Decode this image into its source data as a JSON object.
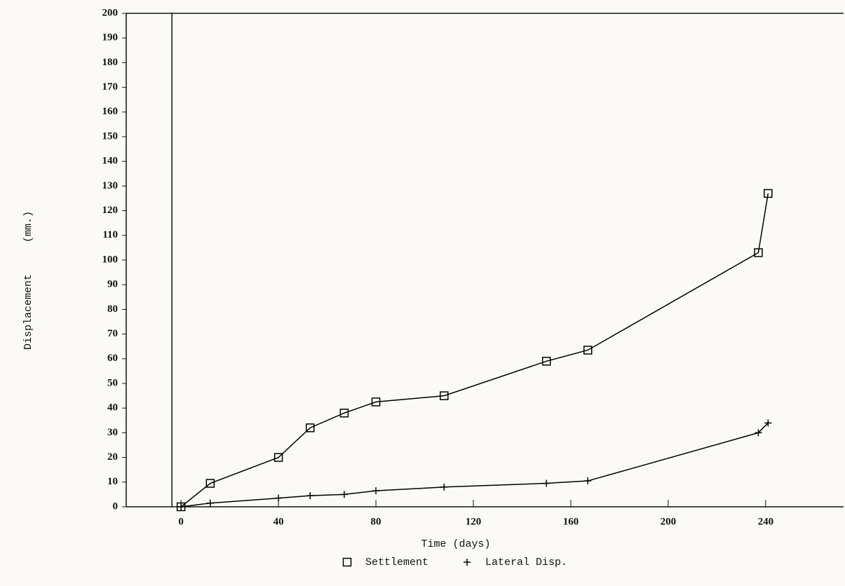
{
  "chart_data": {
    "type": "line",
    "x_label": "Time (days)",
    "y_label": "Displacement     (mm.)",
    "x": [
      0,
      12,
      40,
      53,
      67,
      80,
      108,
      150,
      167,
      237,
      241
    ],
    "series": [
      {
        "name": "Settlement",
        "marker": "square",
        "color": "#000000",
        "values": [
          0,
          9.5,
          20,
          32,
          38,
          42.5,
          45,
          59,
          63.5,
          103,
          127
        ]
      },
      {
        "name": "Lateral Disp.",
        "marker": "plus",
        "color": "#000000",
        "values": [
          0,
          1.5,
          3.5,
          4.5,
          5,
          6.5,
          8,
          9.5,
          10.5,
          30,
          34
        ]
      }
    ],
    "xlim": [
      -22.5,
      272
    ],
    "xticks": [
      0,
      40,
      80,
      120,
      160,
      200,
      240
    ],
    "ylim": [
      0,
      200
    ],
    "yticks": [
      0,
      10,
      20,
      30,
      40,
      50,
      60,
      70,
      80,
      90,
      100,
      110,
      120,
      130,
      140,
      150,
      160,
      170,
      180,
      190,
      200
    ],
    "legend": "bottom"
  }
}
